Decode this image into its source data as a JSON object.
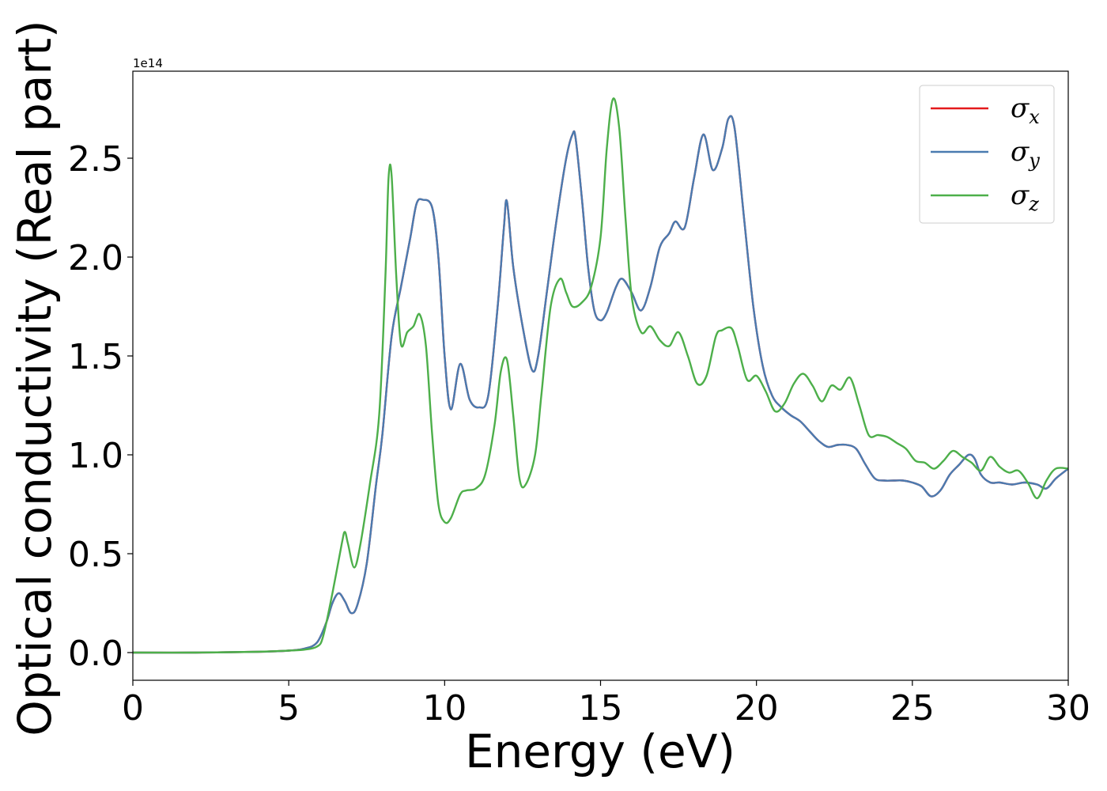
{
  "chart_data": {
    "type": "line",
    "xlabel": "Energy (eV)",
    "ylabel": "Optical conductivity (Real part)",
    "y_offset_text": "1e14",
    "y_scale_factor": 100000000000000.0,
    "xlim": [
      0,
      30
    ],
    "ylim": [
      -0.14,
      2.94
    ],
    "x_ticks": [
      "0",
      "5",
      "10",
      "15",
      "20",
      "25",
      "30"
    ],
    "y_ticks": [
      "0.0",
      "0.5",
      "1.0",
      "1.5",
      "2.0",
      "2.5"
    ],
    "grid": false,
    "legend_position": "top-right",
    "series": [
      {
        "name": "σx",
        "symbol": "σ",
        "subscript": "x",
        "color": "#e41a1c",
        "x": [
          0,
          2,
          4,
          5,
          5.5,
          5.9,
          6.2,
          6.4,
          6.6,
          6.8,
          7.0,
          7.2,
          7.5,
          7.8,
          8.0,
          8.3,
          8.6,
          8.9,
          9.1,
          9.3,
          9.6,
          9.8,
          10.0,
          10.2,
          10.5,
          10.8,
          11.1,
          11.4,
          11.7,
          11.9,
          12.0,
          12.2,
          12.5,
          12.8,
          13.0,
          13.3,
          13.6,
          13.9,
          14.1,
          14.2,
          14.4,
          14.6,
          14.8,
          15.0,
          15.2,
          15.5,
          15.7,
          16.0,
          16.3,
          16.6,
          16.9,
          17.2,
          17.4,
          17.7,
          18.0,
          18.3,
          18.6,
          18.9,
          19.1,
          19.3,
          19.6,
          19.9,
          20.2,
          20.5,
          20.8,
          21.1,
          21.4,
          21.7,
          22.0,
          22.3,
          22.6,
          22.9,
          23.2,
          23.5,
          23.8,
          24.1,
          24.4,
          24.7,
          25.0,
          25.3,
          25.6,
          25.9,
          26.2,
          26.5,
          26.8,
          27.0,
          27.2,
          27.5,
          27.8,
          28.2,
          28.6,
          29.0,
          29.3,
          29.6,
          30.0
        ],
        "y": [
          0.0,
          0.0,
          0.004,
          0.01,
          0.02,
          0.05,
          0.15,
          0.25,
          0.3,
          0.26,
          0.2,
          0.24,
          0.45,
          0.85,
          1.1,
          1.6,
          1.85,
          2.1,
          2.27,
          2.29,
          2.25,
          2.0,
          1.5,
          1.23,
          1.46,
          1.28,
          1.24,
          1.3,
          1.75,
          2.15,
          2.28,
          1.95,
          1.65,
          1.43,
          1.5,
          1.85,
          2.2,
          2.5,
          2.62,
          2.6,
          2.3,
          1.95,
          1.73,
          1.68,
          1.72,
          1.85,
          1.89,
          1.82,
          1.73,
          1.85,
          2.05,
          2.12,
          2.18,
          2.15,
          2.4,
          2.62,
          2.44,
          2.55,
          2.7,
          2.65,
          2.2,
          1.75,
          1.45,
          1.3,
          1.24,
          1.2,
          1.17,
          1.12,
          1.07,
          1.04,
          1.05,
          1.05,
          1.03,
          0.95,
          0.88,
          0.87,
          0.87,
          0.87,
          0.86,
          0.84,
          0.79,
          0.82,
          0.9,
          0.95,
          1.0,
          0.98,
          0.9,
          0.86,
          0.86,
          0.85,
          0.86,
          0.85,
          0.83,
          0.88,
          0.93
        ]
      },
      {
        "name": "σy",
        "symbol": "σ",
        "subscript": "y",
        "color": "#4a7bb0",
        "x": [
          0,
          2,
          4,
          5,
          5.5,
          5.9,
          6.2,
          6.4,
          6.6,
          6.8,
          7.0,
          7.2,
          7.5,
          7.8,
          8.0,
          8.3,
          8.6,
          8.9,
          9.1,
          9.3,
          9.6,
          9.8,
          10.0,
          10.2,
          10.5,
          10.8,
          11.1,
          11.4,
          11.7,
          11.9,
          12.0,
          12.2,
          12.5,
          12.8,
          13.0,
          13.3,
          13.6,
          13.9,
          14.1,
          14.2,
          14.4,
          14.6,
          14.8,
          15.0,
          15.2,
          15.5,
          15.7,
          16.0,
          16.3,
          16.6,
          16.9,
          17.2,
          17.4,
          17.7,
          18.0,
          18.3,
          18.6,
          18.9,
          19.1,
          19.3,
          19.6,
          19.9,
          20.2,
          20.5,
          20.8,
          21.1,
          21.4,
          21.7,
          22.0,
          22.3,
          22.6,
          22.9,
          23.2,
          23.5,
          23.8,
          24.1,
          24.4,
          24.7,
          25.0,
          25.3,
          25.6,
          25.9,
          26.2,
          26.5,
          26.8,
          27.0,
          27.2,
          27.5,
          27.8,
          28.2,
          28.6,
          29.0,
          29.3,
          29.6,
          30.0
        ],
        "y": [
          0.0,
          0.0,
          0.004,
          0.01,
          0.02,
          0.05,
          0.15,
          0.25,
          0.3,
          0.26,
          0.2,
          0.24,
          0.45,
          0.85,
          1.1,
          1.6,
          1.85,
          2.1,
          2.27,
          2.29,
          2.25,
          2.0,
          1.5,
          1.23,
          1.46,
          1.28,
          1.24,
          1.3,
          1.75,
          2.15,
          2.28,
          1.95,
          1.65,
          1.43,
          1.5,
          1.85,
          2.2,
          2.5,
          2.62,
          2.6,
          2.3,
          1.95,
          1.73,
          1.68,
          1.72,
          1.85,
          1.89,
          1.82,
          1.73,
          1.85,
          2.05,
          2.12,
          2.18,
          2.15,
          2.4,
          2.62,
          2.44,
          2.55,
          2.7,
          2.65,
          2.2,
          1.75,
          1.45,
          1.3,
          1.24,
          1.2,
          1.17,
          1.12,
          1.07,
          1.04,
          1.05,
          1.05,
          1.03,
          0.95,
          0.88,
          0.87,
          0.87,
          0.87,
          0.86,
          0.84,
          0.79,
          0.82,
          0.9,
          0.95,
          1.0,
          0.98,
          0.9,
          0.86,
          0.86,
          0.85,
          0.86,
          0.85,
          0.83,
          0.88,
          0.93
        ]
      },
      {
        "name": "σz",
        "symbol": "σ",
        "subscript": "z",
        "color": "#4daf4a",
        "x": [
          0,
          2,
          4,
          5,
          5.5,
          5.9,
          6.1,
          6.4,
          6.7,
          6.8,
          6.9,
          7.1,
          7.3,
          7.6,
          7.9,
          8.1,
          8.2,
          8.3,
          8.45,
          8.6,
          8.8,
          9.0,
          9.2,
          9.4,
          9.6,
          9.8,
          10.0,
          10.2,
          10.5,
          10.7,
          11.0,
          11.3,
          11.6,
          11.8,
          12.0,
          12.2,
          12.4,
          12.6,
          12.9,
          13.1,
          13.4,
          13.7,
          13.9,
          14.1,
          14.4,
          14.7,
          15.0,
          15.2,
          15.4,
          15.6,
          15.8,
          16.0,
          16.3,
          16.6,
          16.9,
          17.2,
          17.5,
          17.8,
          18.1,
          18.4,
          18.7,
          18.9,
          19.2,
          19.4,
          19.7,
          20.0,
          20.3,
          20.6,
          20.9,
          21.2,
          21.5,
          21.8,
          22.1,
          22.4,
          22.7,
          23.0,
          23.3,
          23.6,
          23.9,
          24.2,
          24.5,
          24.8,
          25.1,
          25.4,
          25.7,
          26.0,
          26.3,
          26.6,
          26.9,
          27.2,
          27.5,
          27.8,
          28.1,
          28.4,
          28.7,
          29.0,
          29.3,
          29.6,
          30.0
        ],
        "y": [
          0.0,
          0.0,
          0.004,
          0.01,
          0.015,
          0.03,
          0.08,
          0.3,
          0.55,
          0.61,
          0.55,
          0.43,
          0.55,
          0.85,
          1.2,
          1.9,
          2.4,
          2.41,
          1.9,
          1.56,
          1.62,
          1.65,
          1.71,
          1.55,
          1.1,
          0.75,
          0.66,
          0.68,
          0.8,
          0.82,
          0.83,
          0.9,
          1.15,
          1.42,
          1.48,
          1.2,
          0.88,
          0.85,
          1.0,
          1.3,
          1.75,
          1.89,
          1.82,
          1.75,
          1.77,
          1.85,
          2.1,
          2.55,
          2.8,
          2.65,
          2.2,
          1.8,
          1.62,
          1.65,
          1.58,
          1.55,
          1.62,
          1.5,
          1.36,
          1.4,
          1.6,
          1.63,
          1.64,
          1.55,
          1.38,
          1.4,
          1.32,
          1.22,
          1.26,
          1.36,
          1.41,
          1.35,
          1.27,
          1.35,
          1.33,
          1.39,
          1.25,
          1.1,
          1.1,
          1.09,
          1.06,
          1.03,
          0.97,
          0.96,
          0.93,
          0.97,
          1.02,
          0.99,
          0.96,
          0.92,
          0.99,
          0.94,
          0.91,
          0.92,
          0.86,
          0.78,
          0.87,
          0.93,
          0.93
        ]
      }
    ]
  }
}
